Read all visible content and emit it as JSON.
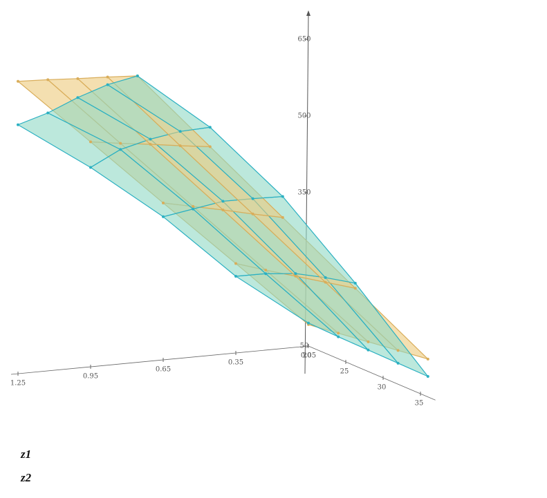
{
  "chart_data": {
    "type": "surface3d",
    "x": [
      0.05,
      0.35,
      0.65,
      0.95,
      1.25
    ],
    "y": [
      20,
      24,
      28,
      32,
      36
    ],
    "xlim": [
      0.05,
      1.25
    ],
    "ylim": [
      20,
      37
    ],
    "zlim": [
      50,
      700
    ],
    "xticks": [
      0.05,
      0.35,
      0.65,
      0.95,
      1.25
    ],
    "yticks": [
      20,
      25,
      30,
      35
    ],
    "zticks": [
      50,
      350,
      500,
      650
    ],
    "series": [
      {
        "name": "z1",
        "color": "#d9ad5a",
        "fill": "#ecc97c",
        "values": [
          [
            92,
            225,
            357,
            490,
            622
          ],
          [
            100,
            237,
            375,
            512,
            650
          ],
          [
            108,
            250,
            393,
            535,
            677
          ],
          [
            116,
            263,
            410,
            557,
            705
          ],
          [
            124,
            276,
            428,
            580,
            732
          ]
        ]
      },
      {
        "name": "z2",
        "color": "#2bb0c2",
        "fill": "#8fd8c4",
        "values": [
          [
            95,
            200,
            330,
            440,
            537
          ],
          [
            93,
            230,
            370,
            500,
            585
          ],
          [
            92,
            255,
            410,
            545,
            640
          ],
          [
            91,
            272,
            440,
            585,
            690
          ],
          [
            90,
            286,
            469,
            618,
            732
          ]
        ]
      }
    ]
  }
}
